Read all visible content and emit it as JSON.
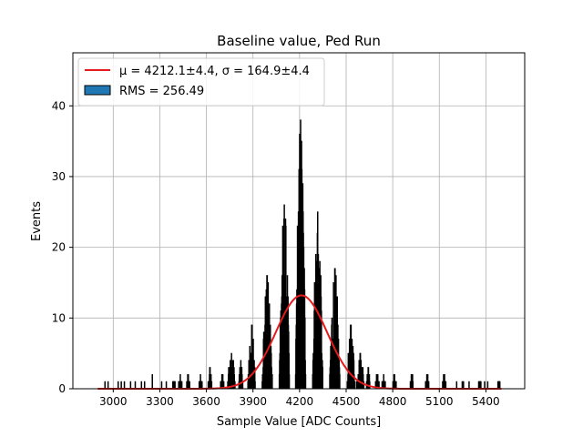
{
  "chart_data": {
    "type": "bar",
    "title": "Baseline value, Ped Run",
    "xlabel": "Sample Value [ADC Counts]",
    "ylabel": "Events",
    "xlim": [
      2740,
      5650
    ],
    "ylim": [
      0,
      47.5
    ],
    "xticks": [
      3000,
      3300,
      3600,
      3900,
      4200,
      4500,
      4800,
      5100,
      5400
    ],
    "yticks": [
      0,
      10,
      20,
      30,
      40
    ],
    "grid": true,
    "legend_position": "top-left",
    "legend": {
      "fit_label": "μ = 4212.1±4.4, σ = 164.9±4.4",
      "hist_label": "RMS = 256.49"
    },
    "fit": {
      "type": "gaussian",
      "mu": 4212.1,
      "mu_err": 4.4,
      "sigma": 164.9,
      "sigma_err": 4.4,
      "peak": 13.2,
      "x_range": [
        2900,
        5500
      ]
    },
    "histogram": {
      "rms": 256.49,
      "bin_width": 2,
      "peaks": [
        {
          "center": 3390,
          "height": 1
        },
        {
          "center": 3430,
          "height": 2
        },
        {
          "center": 3480,
          "height": 2
        },
        {
          "center": 3560,
          "height": 2
        },
        {
          "center": 3620,
          "height": 3
        },
        {
          "center": 3700,
          "height": 2
        },
        {
          "center": 3760,
          "height": 5
        },
        {
          "center": 3820,
          "height": 4
        },
        {
          "center": 3890,
          "height": 9
        },
        {
          "center": 3990,
          "height": 16
        },
        {
          "center": 4100,
          "height": 26
        },
        {
          "center": 4205,
          "height": 38
        },
        {
          "center": 4315,
          "height": 25
        },
        {
          "center": 4425,
          "height": 17
        },
        {
          "center": 4530,
          "height": 9
        },
        {
          "center": 4590,
          "height": 5
        },
        {
          "center": 4640,
          "height": 3
        },
        {
          "center": 4700,
          "height": 2
        },
        {
          "center": 4740,
          "height": 2
        },
        {
          "center": 4810,
          "height": 2
        },
        {
          "center": 4920,
          "height": 2
        },
        {
          "center": 5020,
          "height": 2
        },
        {
          "center": 5130,
          "height": 2
        },
        {
          "center": 5250,
          "height": 1
        },
        {
          "center": 5360,
          "height": 1
        },
        {
          "center": 5480,
          "height": 1
        }
      ],
      "sparse_bins": [
        {
          "x": 2945,
          "height": 1
        },
        {
          "x": 2965,
          "height": 1
        },
        {
          "x": 3030,
          "height": 1
        },
        {
          "x": 3050,
          "height": 1
        },
        {
          "x": 3070,
          "height": 1
        },
        {
          "x": 3110,
          "height": 1
        },
        {
          "x": 3140,
          "height": 1
        },
        {
          "x": 3180,
          "height": 1
        },
        {
          "x": 3200,
          "height": 1
        },
        {
          "x": 3250,
          "height": 2
        },
        {
          "x": 3310,
          "height": 1
        },
        {
          "x": 3340,
          "height": 1
        },
        {
          "x": 5210,
          "height": 1
        },
        {
          "x": 5290,
          "height": 1
        },
        {
          "x": 5390,
          "height": 1
        },
        {
          "x": 5410,
          "height": 1
        }
      ]
    }
  }
}
